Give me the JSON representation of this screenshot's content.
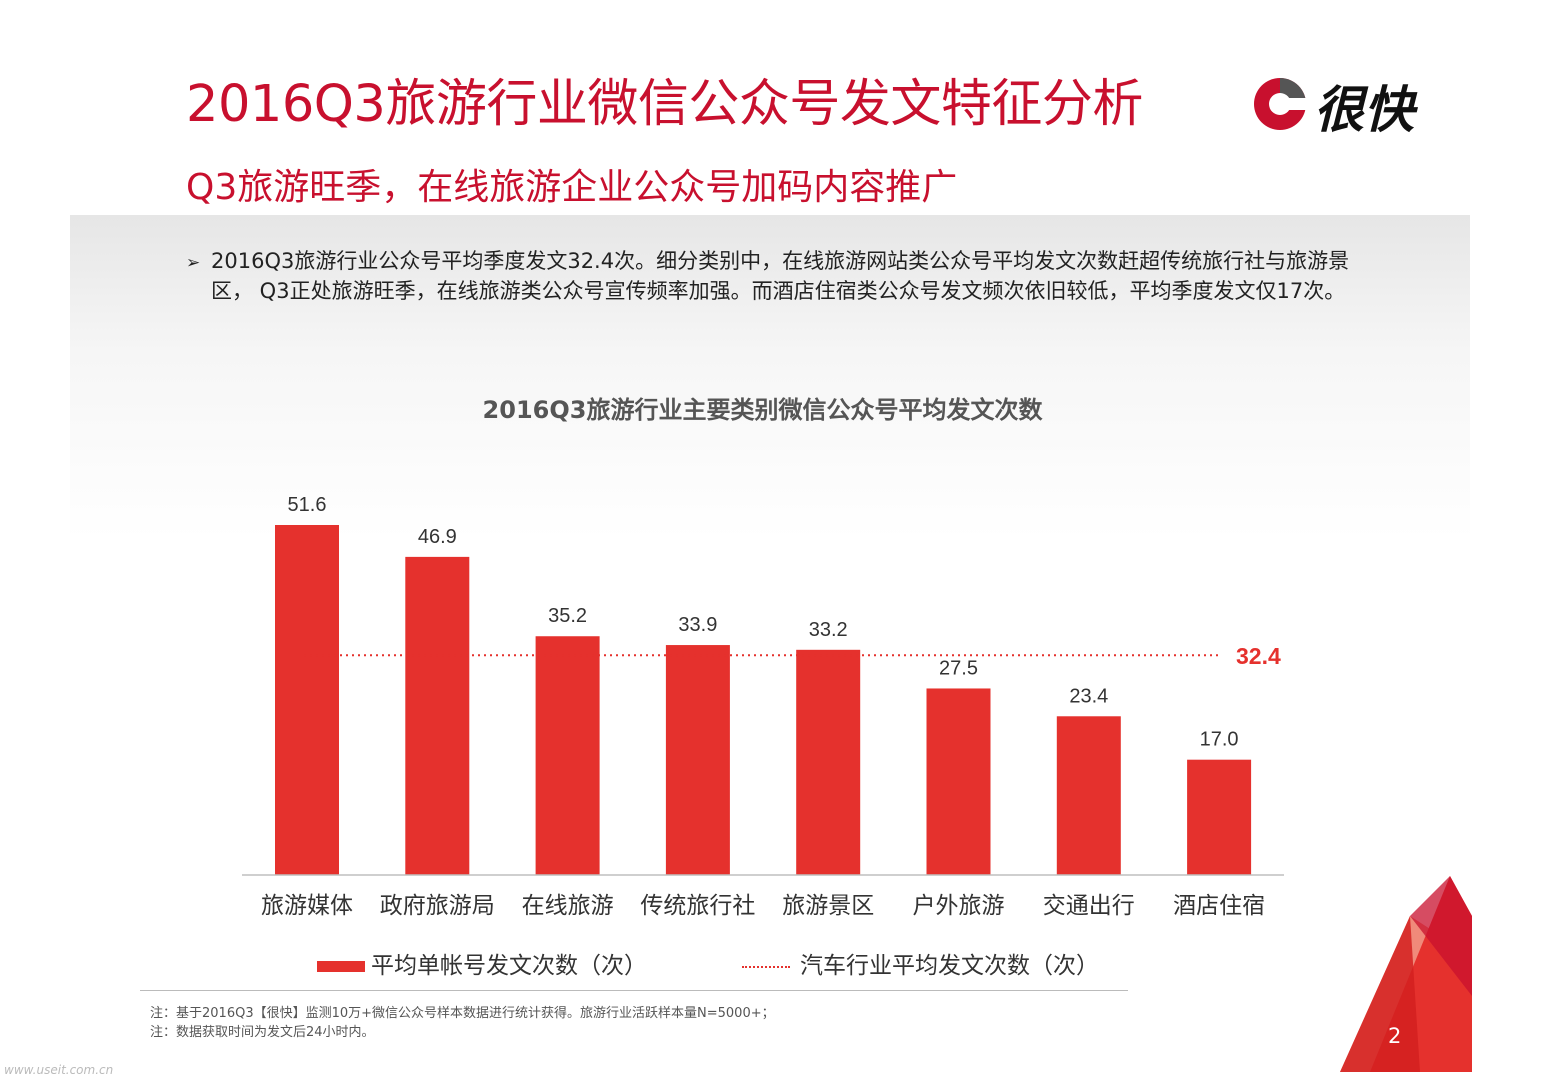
{
  "title": "2016Q3旅游行业微信公众号发文特征分析",
  "logo_text": "很快",
  "subtitle": "Q3旅游旺季，在线旅游企业公众号加码内容推广",
  "bullet": {
    "marker": "➢",
    "text": "2016Q3旅游行业公众号平均季度发文32.4次。细分类别中，在线旅游网站类公众号平均发文次数赶超传统旅行社与旅游景区， Q3正处旅游旺季，在线旅游类公众号宣传频率加强。而酒店住宿类公众号发文频次依旧较低，平均季度发文仅17次。"
  },
  "legend": {
    "bar": "平均单帐号发文次数（次）",
    "line": "汽车行业平均发文次数（次）"
  },
  "notes": [
    "注：基于2016Q3【很快】监测10万+微信公众号样本数据进行统计获得。旅游行业活跃样本量N=5000+；",
    "注：数据获取时间为发文后24小时内。"
  ],
  "page_number": "2",
  "watermark": "www.useit.com.cn",
  "colors": {
    "accent": "#c8102e",
    "bar": "#e5312d",
    "average_line": "#e5312d"
  },
  "chart_data": {
    "type": "bar",
    "title": "2016Q3旅游行业主要类别微信公众号平均发文次数",
    "categories": [
      "旅游媒体",
      "政府旅游局",
      "在线旅游",
      "传统旅行社",
      "旅游景区",
      "户外旅游",
      "交通出行",
      "酒店住宿"
    ],
    "series": [
      {
        "name": "平均单帐号发文次数（次）",
        "values": [
          51.6,
          46.9,
          35.2,
          33.9,
          33.2,
          27.5,
          23.4,
          17.0
        ],
        "labels": [
          "51.6",
          "46.9",
          "35.2",
          "33.9",
          "33.2",
          "27.5",
          "23.4",
          "17.0"
        ]
      }
    ],
    "reference_line": {
      "name": "汽车行业平均发文次数（次）",
      "value": 32.4,
      "label": "32.4",
      "style": "dotted"
    },
    "ylim": [
      0,
      51.6
    ],
    "xlabel": "",
    "ylabel": "",
    "grid": false,
    "legend_position": "bottom"
  }
}
